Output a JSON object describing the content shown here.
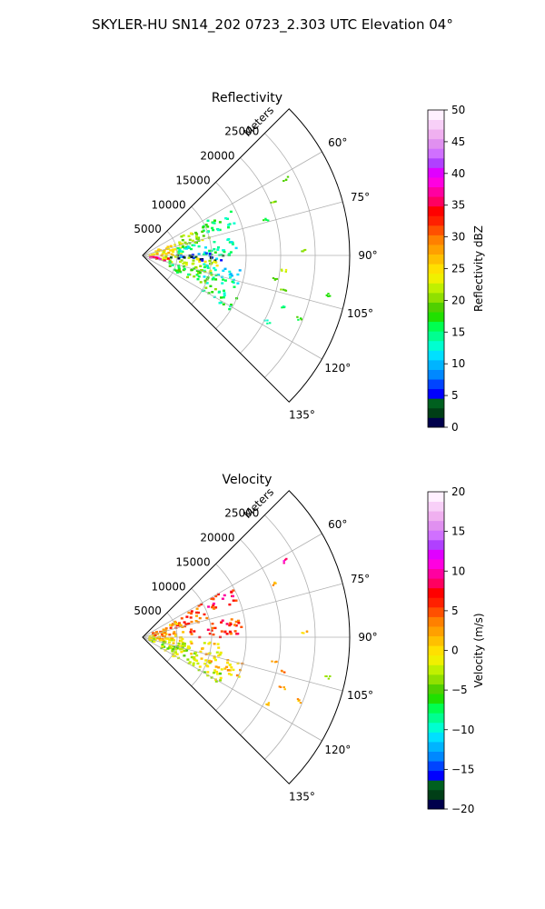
{
  "figure": {
    "suptitle": "SKYLER-HU  SN14_202  0723_2.303 UTC Elevation 04°"
  },
  "chart_data": [
    {
      "type": "polar-sector",
      "title": "Reflectivity",
      "radial_label": "Meters",
      "radial_range": [
        0,
        30000
      ],
      "radial_ticks": [
        5000,
        10000,
        15000,
        20000,
        25000
      ],
      "radial_tick_labels": [
        "5000",
        "10000",
        "15000",
        "20000",
        "25000"
      ],
      "azimuth_range_deg": [
        45,
        135
      ],
      "azimuth_ticks": [
        60,
        75,
        90,
        105,
        120,
        135
      ],
      "azimuth_tick_labels": [
        "60°",
        "75°",
        "90°",
        "105°",
        "120°",
        "135°"
      ],
      "grid": true,
      "colorbar": {
        "label": "Reflectivity dBZ",
        "range": [
          0,
          50
        ],
        "ticks": [
          0,
          5,
          10,
          15,
          20,
          25,
          30,
          35,
          40,
          45,
          50
        ],
        "tick_labels": [
          "0",
          "5",
          "10",
          "15",
          "20",
          "25",
          "30",
          "35",
          "40",
          "45",
          "50"
        ],
        "colors": [
          "#00004c",
          "#003e16",
          "#00601f",
          "#0000ff",
          "#0044ff",
          "#0088ff",
          "#00b4ff",
          "#00e0ff",
          "#00ffd0",
          "#00ff90",
          "#00ff50",
          "#20e000",
          "#50d000",
          "#90e000",
          "#c0f000",
          "#f0f000",
          "#ffe000",
          "#ffc000",
          "#ffa000",
          "#ff8000",
          "#ff5000",
          "#ff2000",
          "#ff0000",
          "#ff0060",
          "#ff00a0",
          "#ff00e0",
          "#e000ff",
          "#b040ff",
          "#d070ff",
          "#e090f0",
          "#f0b0f0",
          "#f8d0f8",
          "#fff0ff"
        ]
      },
      "clusters": [
        {
          "az": [
            62,
            72
          ],
          "r": [
            9000,
            15000
          ],
          "value": 15
        },
        {
          "az": [
            64,
            78
          ],
          "r": [
            5000,
            10000
          ],
          "value": 20
        },
        {
          "az": [
            68,
            84
          ],
          "r": [
            2000,
            6000
          ],
          "value": 24
        },
        {
          "az": [
            78,
            90
          ],
          "r": [
            5000,
            14500
          ],
          "value": 14
        },
        {
          "az": [
            84,
            92
          ],
          "r": [
            1000,
            6000
          ],
          "value": 26
        },
        {
          "az": [
            88,
            93
          ],
          "r": [
            4000,
            11000
          ],
          "value": 8
        },
        {
          "az": [
            90,
            95
          ],
          "r": [
            4000,
            12000
          ],
          "value": 3
        },
        {
          "az": [
            92,
            104
          ],
          "r": [
            2000,
            11000
          ],
          "value": 22
        },
        {
          "az": [
            96,
            104
          ],
          "r": [
            1000,
            4000
          ],
          "value": 36
        },
        {
          "az": [
            98,
            110
          ],
          "r": [
            9000,
            15000
          ],
          "value": 13
        },
        {
          "az": [
            104,
            118
          ],
          "r": [
            4000,
            12000
          ],
          "value": 18
        },
        {
          "az": [
            112,
            122
          ],
          "r": [
            10000,
            15000
          ],
          "value": 15
        }
      ],
      "scattered": [
        {
          "az": 62,
          "r": 23500,
          "value": 18
        },
        {
          "az": 68,
          "r": 20500,
          "value": 20
        },
        {
          "az": 74,
          "r": 18500,
          "value": 16
        },
        {
          "az": 88,
          "r": 23500,
          "value": 20
        },
        {
          "az": 100,
          "r": 19500,
          "value": 18
        },
        {
          "az": 104,
          "r": 21000,
          "value": 20
        },
        {
          "az": 110,
          "r": 21500,
          "value": 16
        },
        {
          "az": 112,
          "r": 24500,
          "value": 18
        },
        {
          "az": 118,
          "r": 20500,
          "value": 14
        },
        {
          "az": 102,
          "r": 27500,
          "value": 18
        },
        {
          "az": 96,
          "r": 20500,
          "value": 22
        }
      ]
    },
    {
      "type": "polar-sector",
      "title": "Velocity",
      "radial_label": "Meters",
      "radial_range": [
        0,
        30000
      ],
      "radial_ticks": [
        5000,
        10000,
        15000,
        20000,
        25000
      ],
      "radial_tick_labels": [
        "5000",
        "10000",
        "15000",
        "20000",
        "25000"
      ],
      "azimuth_range_deg": [
        45,
        135
      ],
      "azimuth_ticks": [
        60,
        75,
        90,
        105,
        120,
        135
      ],
      "azimuth_tick_labels": [
        "60°",
        "75°",
        "90°",
        "105°",
        "120°",
        "135°"
      ],
      "grid": true,
      "colorbar": {
        "label": "Velocity (m/s)",
        "range": [
          -20,
          20
        ],
        "ticks": [
          -20,
          -15,
          -10,
          -5,
          0,
          5,
          10,
          15,
          20
        ],
        "tick_labels": [
          "−20",
          "−15",
          "−10",
          "−5",
          "0",
          "5",
          "10",
          "15",
          "20"
        ],
        "colors": [
          "#00004c",
          "#003e16",
          "#00601f",
          "#0000ff",
          "#0044ff",
          "#0088ff",
          "#00b4ff",
          "#00e0ff",
          "#00ffd0",
          "#00ff90",
          "#00ff50",
          "#20e000",
          "#50d000",
          "#90e000",
          "#c0f000",
          "#f0f000",
          "#ffe000",
          "#ffc000",
          "#ffa000",
          "#ff8000",
          "#ff5000",
          "#ff2000",
          "#ff0000",
          "#ff0060",
          "#ff00a0",
          "#ff00e0",
          "#e000ff",
          "#b040ff",
          "#d070ff",
          "#e090f0",
          "#f0b0f0",
          "#f8d0f8",
          "#fff0ff"
        ]
      },
      "clusters": [
        {
          "az": [
            60,
            70
          ],
          "r": [
            9000,
            15000
          ],
          "value": 7
        },
        {
          "az": [
            62,
            76
          ],
          "r": [
            5000,
            10000
          ],
          "value": 5
        },
        {
          "az": [
            66,
            86
          ],
          "r": [
            1500,
            6000
          ],
          "value": 3
        },
        {
          "az": [
            78,
            90
          ],
          "r": [
            7000,
            14500
          ],
          "value": 6
        },
        {
          "az": [
            86,
            98
          ],
          "r": [
            1000,
            6000
          ],
          "value": 1
        },
        {
          "az": [
            94,
            104
          ],
          "r": [
            3000,
            12000
          ],
          "value": 0
        },
        {
          "az": [
            98,
            112
          ],
          "r": [
            1000,
            7000
          ],
          "value": -3
        },
        {
          "az": [
            106,
            122
          ],
          "r": [
            3000,
            13000
          ],
          "value": -2
        },
        {
          "az": [
            104,
            114
          ],
          "r": [
            9000,
            16000
          ],
          "value": 1
        }
      ],
      "scattered": [
        {
          "az": 62,
          "r": 23500,
          "value": 10
        },
        {
          "az": 68,
          "r": 20500,
          "value": 2
        },
        {
          "az": 88,
          "r": 23500,
          "value": 1
        },
        {
          "az": 100,
          "r": 19500,
          "value": 2
        },
        {
          "az": 104,
          "r": 21000,
          "value": 4
        },
        {
          "az": 110,
          "r": 21500,
          "value": 3
        },
        {
          "az": 112,
          "r": 24500,
          "value": 2
        },
        {
          "az": 118,
          "r": 20500,
          "value": 1
        },
        {
          "az": 102,
          "r": 27500,
          "value": -4
        }
      ]
    }
  ]
}
